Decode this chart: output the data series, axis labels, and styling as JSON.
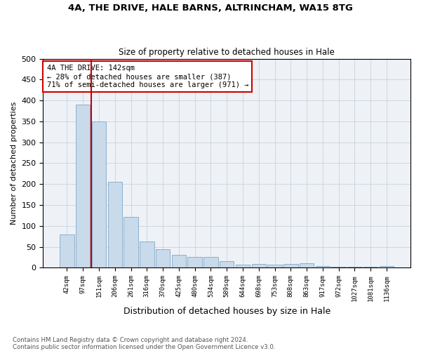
{
  "title1": "4A, THE DRIVE, HALE BARNS, ALTRINCHAM, WA15 8TG",
  "title2": "Size of property relative to detached houses in Hale",
  "xlabel": "Distribution of detached houses by size in Hale",
  "ylabel": "Number of detached properties",
  "bar_color": "#c9daea",
  "bar_edge_color": "#8ab0cc",
  "categories": [
    "42sqm",
    "97sqm",
    "151sqm",
    "206sqm",
    "261sqm",
    "316sqm",
    "370sqm",
    "425sqm",
    "480sqm",
    "534sqm",
    "589sqm",
    "644sqm",
    "698sqm",
    "753sqm",
    "808sqm",
    "863sqm",
    "917sqm",
    "972sqm",
    "1027sqm",
    "1081sqm",
    "1136sqm"
  ],
  "values": [
    80,
    390,
    350,
    205,
    122,
    62,
    44,
    30,
    25,
    25,
    16,
    7,
    9,
    8,
    9,
    11,
    4,
    3,
    3,
    3,
    4
  ],
  "vline_color": "#cc0000",
  "annotation_text": "4A THE DRIVE: 142sqm\n← 28% of detached houses are smaller (387)\n71% of semi-detached houses are larger (971) →",
  "annotation_box_color": "#ffffff",
  "annotation_box_edge_color": "#cc0000",
  "footnote": "Contains HM Land Registry data © Crown copyright and database right 2024.\nContains public sector information licensed under the Open Government Licence v3.0.",
  "ylim": [
    0,
    500
  ],
  "background_color": "#eef2f7",
  "grid_color": "#c0ccd8"
}
